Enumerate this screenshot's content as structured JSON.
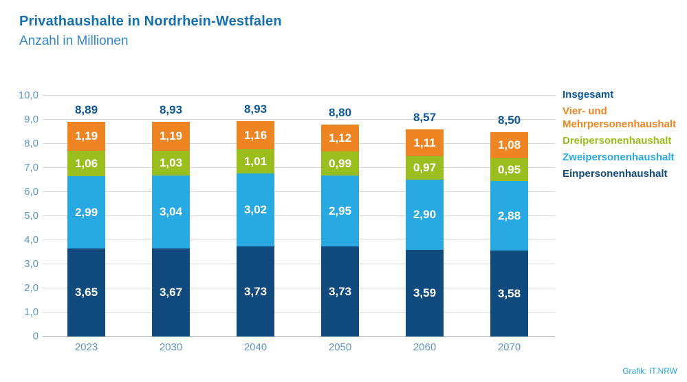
{
  "header": {
    "title": "Privathaushalte in Nordrhein-Westfalen",
    "subtitle": "Anzahl in Millionen"
  },
  "footer": {
    "credit": "Grafik: IT.NRW"
  },
  "colors": {
    "einpersonenhaushalt": "#114a7d",
    "zweipersonenhaushalt": "#29a9e1",
    "dreipersonenhaushalt": "#9bbe1f",
    "vier_mehrpersonenhaushalt": "#ef8522",
    "insgesamt_text": "#0e5796",
    "axis_text": "#5f97c2",
    "gridline": "#d8d8d8",
    "title_text": "#1470ad",
    "subtitle_text": "#3387c0",
    "credit_text": "#29a9e1"
  },
  "legend": [
    {
      "label": "Insgesamt",
      "color_key": "insgesamt_text"
    },
    {
      "label": "Vier- und Mehrpersonenhaushalt",
      "color_key": "vier_mehrpersonenhaushalt"
    },
    {
      "label": "Dreipersonenhaushalt",
      "color_key": "dreipersonenhaushalt"
    },
    {
      "label": "Zweipersonenhaushalt",
      "color_key": "zweipersonenhaushalt"
    },
    {
      "label": "Einpersonenhaushalt",
      "color_key": "einpersonenhaushalt"
    }
  ],
  "chart_data": {
    "type": "bar",
    "stacked": true,
    "title": "Privathaushalte in Nordrhein-Westfalen",
    "subtitle": "Anzahl in Millionen",
    "categories": [
      "2023",
      "2030",
      "2040",
      "2050",
      "2060",
      "2070"
    ],
    "series": [
      {
        "name": "Einpersonenhaushalt",
        "color_key": "einpersonenhaushalt",
        "values": [
          3.65,
          3.67,
          3.73,
          3.73,
          3.59,
          3.58
        ],
        "labels": [
          "3,65",
          "3,67",
          "3,73",
          "3,73",
          "3,59",
          "3,58"
        ]
      },
      {
        "name": "Zweipersonenhaushalt",
        "color_key": "zweipersonenhaushalt",
        "values": [
          2.99,
          3.04,
          3.02,
          2.95,
          2.9,
          2.88
        ],
        "labels": [
          "2,99",
          "3,04",
          "3,02",
          "2,95",
          "2,90",
          "2,88"
        ]
      },
      {
        "name": "Dreipersonenhaushalt",
        "color_key": "dreipersonenhaushalt",
        "values": [
          1.06,
          1.03,
          1.01,
          0.99,
          0.97,
          0.95
        ],
        "labels": [
          "1,06",
          "1,03",
          "1,01",
          "0,99",
          "0,97",
          "0,95"
        ]
      },
      {
        "name": "Vier- und Mehrpersonenhaushalt",
        "color_key": "vier_mehrpersonenhaushalt",
        "values": [
          1.19,
          1.19,
          1.16,
          1.12,
          1.11,
          1.08
        ],
        "labels": [
          "1,19",
          "1,19",
          "1,16",
          "1,12",
          "1,11",
          "1,08"
        ]
      }
    ],
    "totals": [
      8.89,
      8.93,
      8.93,
      8.8,
      8.57,
      8.5
    ],
    "total_labels": [
      "8,89",
      "8,93",
      "8,93",
      "8,80",
      "8,57",
      "8,50"
    ],
    "ylim": [
      0,
      10
    ],
    "ytick_step": 1,
    "ytick_labels": [
      "0",
      "1,0",
      "2,0",
      "3,0",
      "4,0",
      "5,0",
      "6,0",
      "7,0",
      "8,0",
      "9,0",
      "10,0"
    ],
    "grid": true,
    "legend_position": "right"
  }
}
